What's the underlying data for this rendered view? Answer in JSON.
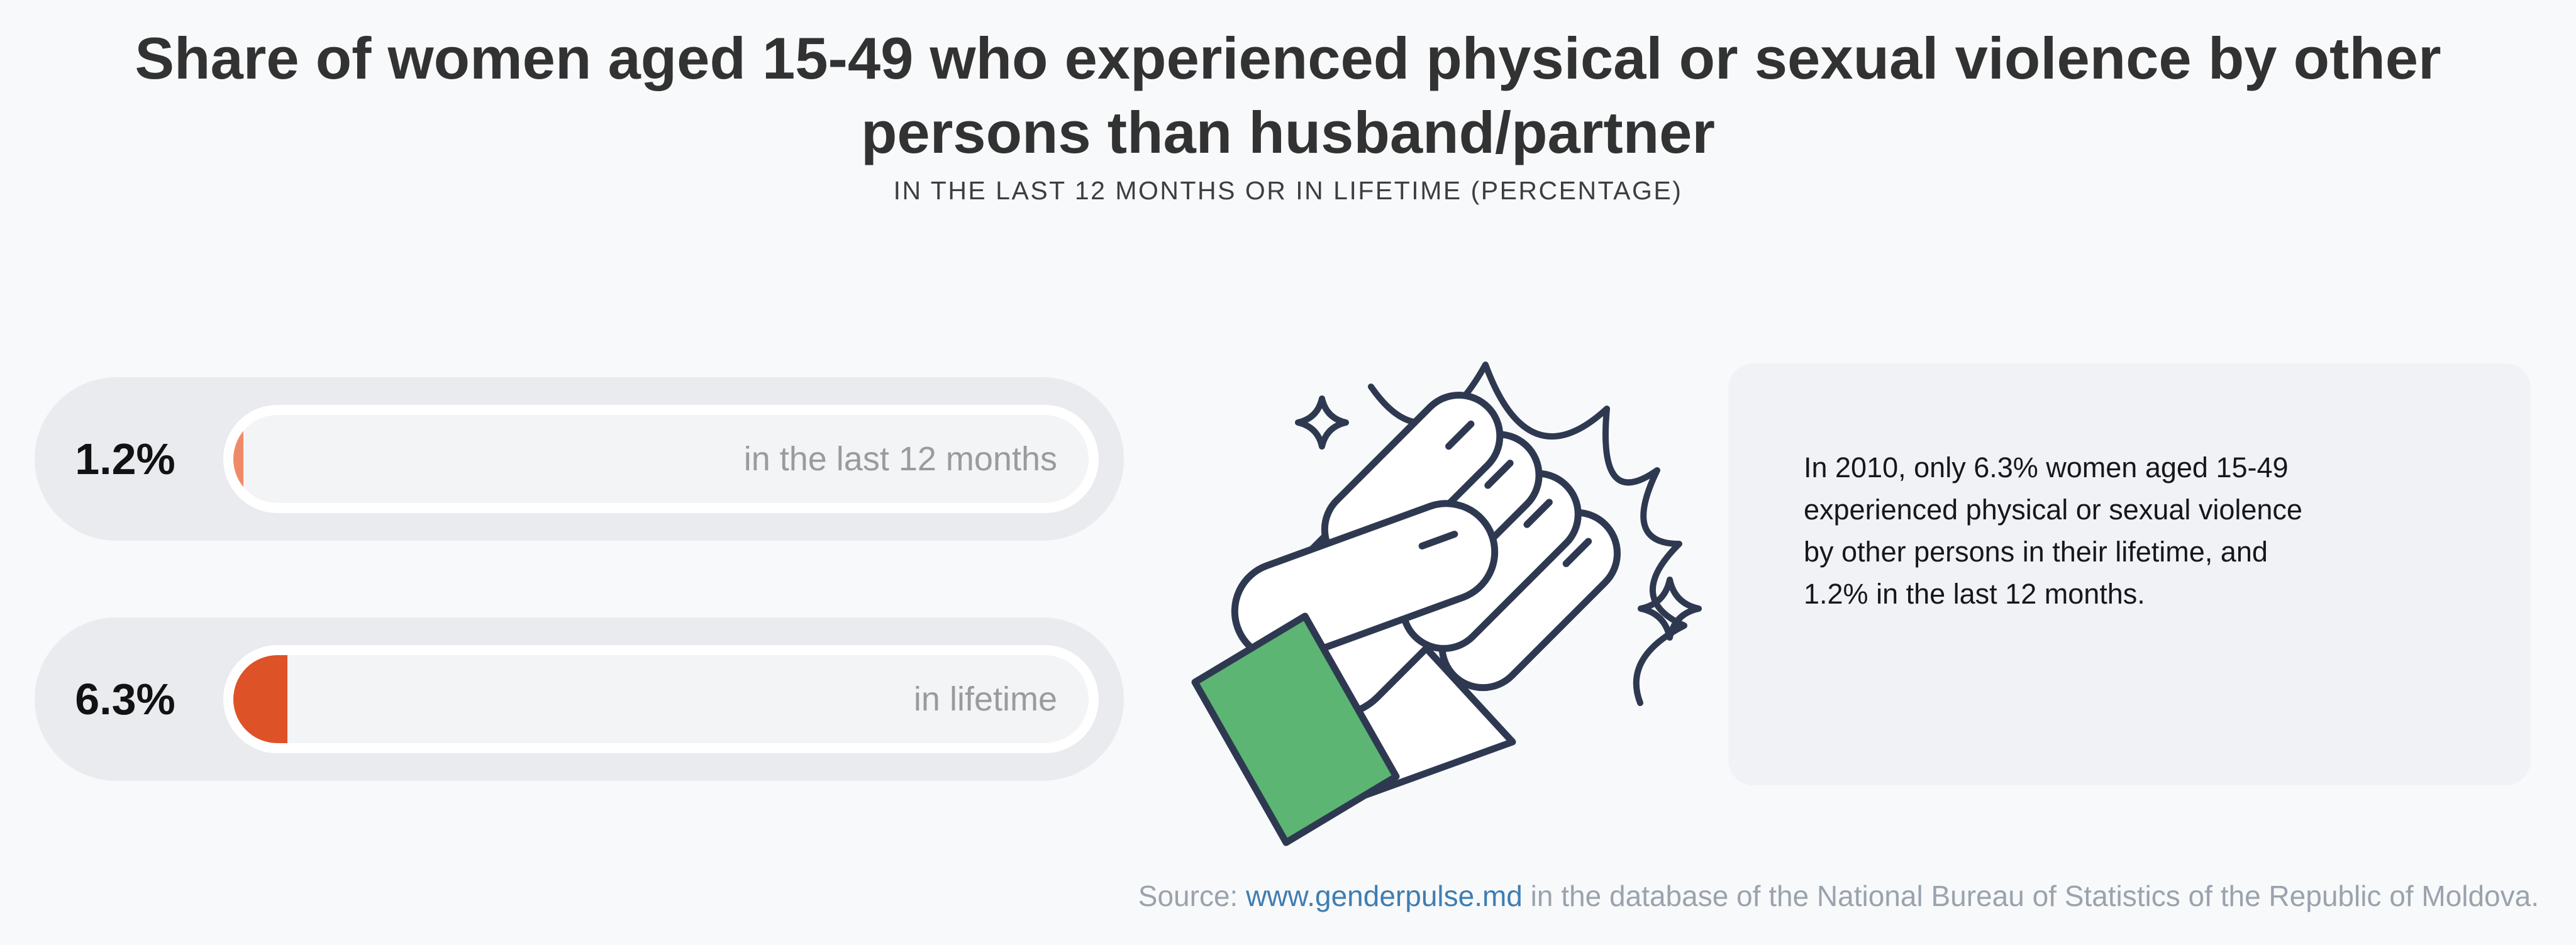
{
  "header": {
    "title_line1": "Share of women aged 15-49 who experienced physical or sexual violence by other",
    "title_line2": "persons than husband/partner",
    "subtitle": "IN THE LAST 12 MONTHS OR IN LIFETIME (PERCENTAGE)"
  },
  "bars": [
    {
      "value_label": "1.2%",
      "label": "in the last 12 months",
      "value_pct": 1.2,
      "fill_color": "#ef8a68"
    },
    {
      "value_label": "6.3%",
      "label": "in lifetime",
      "value_pct": 6.3,
      "fill_color": "#de5228"
    }
  ],
  "annotation": {
    "lines": [
      "In 2010, only 6.3% women aged 15-49",
      "experienced physical or sexual violence",
      "by other persons in their lifetime, and",
      "1.2% in the last 12 months."
    ]
  },
  "footer": {
    "prefix": "Source: ",
    "link_text": "www.genderpulse.md",
    "suffix": " in the database of the National Bureau of Statistics of the Republic of Moldova."
  },
  "illustration": {
    "name": "fist-with-impact-burst-and-sparkles",
    "outline_color": "#2e3951",
    "cuff_color": "#5cb573",
    "hand_color": "#ffffff"
  },
  "colors": {
    "page_background": "#f8f9fa",
    "pill_background": "#e9ebee",
    "capsule_white": "#ffffff",
    "track_background": "#f3f4f6",
    "value_text": "#121212",
    "label_gray": "#9b9b9b",
    "title_text": "#323232",
    "card_background": "#f0f2f5",
    "footer_gray": "#9aa3ad",
    "link_blue": "#3f7db2"
  },
  "chart_data": {
    "type": "bar",
    "orientation": "horizontal",
    "title": "Share of women aged 15-49 who experienced physical or sexual violence by other persons than husband/partner",
    "subtitle": "IN THE LAST 12 MONTHS OR IN LIFETIME (PERCENTAGE)",
    "categories": [
      "in the last 12 months",
      "in lifetime"
    ],
    "values": [
      1.2,
      6.3
    ],
    "value_labels": [
      "1.2%",
      "6.3%"
    ],
    "unit": "percent",
    "xlim": [
      0,
      100
    ],
    "grid": false,
    "legend": "none",
    "bar_colors": [
      "#ef8a68",
      "#de5228"
    ],
    "annotation": "In 2010, only 6.3% women aged 15-49 experienced physical or sexual violence by other persons in their lifetime, and 1.2% in the last 12 months.",
    "source": "Source: www.genderpulse.md in the database of the National Bureau of Statistics of the Republic of Moldova."
  }
}
